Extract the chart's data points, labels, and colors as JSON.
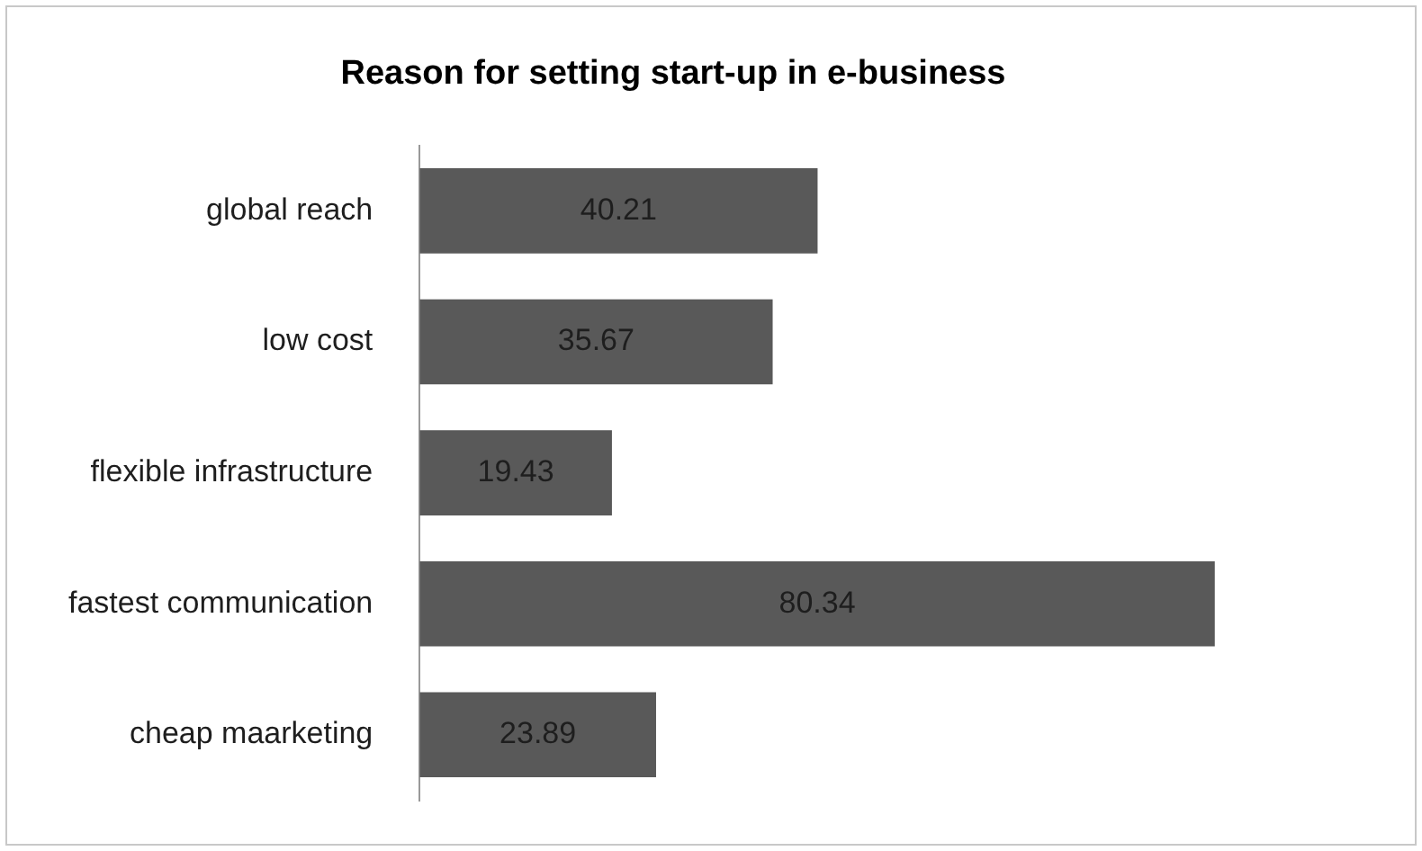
{
  "chart_data": {
    "type": "bar",
    "orientation": "horizontal",
    "title": "Reason for setting start-up in e-business",
    "categories": [
      "global reach",
      "low cost",
      "flexible infrastructure",
      "fastest communication",
      "cheap maarketing"
    ],
    "values": [
      40.21,
      35.67,
      19.43,
      80.34,
      23.89
    ],
    "color": "#595959",
    "data_labels": true,
    "legend": false
  }
}
